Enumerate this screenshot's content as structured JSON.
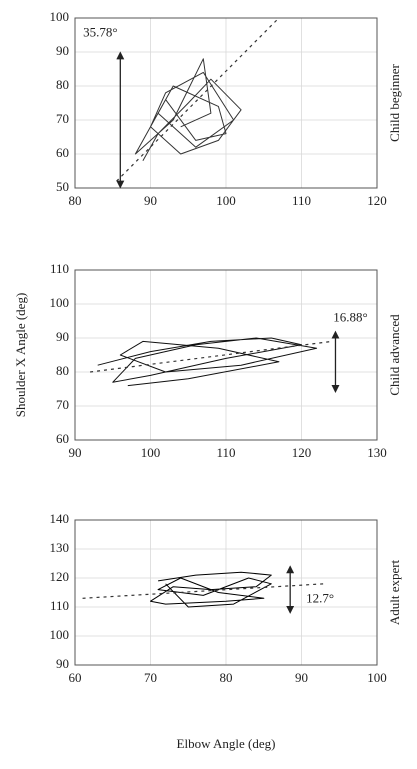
{
  "chart_data": [
    {
      "type": "line",
      "title": "Child beginner",
      "x": [
        89,
        91,
        95,
        98,
        102,
        99,
        94,
        90,
        92,
        97,
        101,
        96,
        91,
        93,
        99,
        100,
        96,
        92,
        88,
        93,
        97,
        98,
        94
      ],
      "y": [
        58,
        66,
        75,
        82,
        73,
        64,
        60,
        68,
        78,
        84,
        70,
        62,
        72,
        80,
        74,
        66,
        64,
        76,
        60,
        70,
        88,
        72,
        68
      ],
      "color": "#333333",
      "fit": {
        "x": [
          85.5,
          107
        ],
        "y": [
          52,
          100
        ]
      },
      "annotation": {
        "text": "35.78°",
        "arrow_x": 86,
        "arrow_y": [
          51,
          89
        ]
      },
      "xlim": [
        80,
        120
      ],
      "ylim": [
        50,
        100
      ],
      "xticks": [
        80,
        90,
        100,
        110,
        120
      ],
      "yticks": [
        50,
        60,
        70,
        80,
        90,
        100
      ],
      "grid": true
    },
    {
      "type": "line",
      "title": "Child advanced",
      "ylabel": "Shoulder X Angle (deg)",
      "x": [
        93,
        100,
        108,
        116,
        120,
        110,
        100,
        95,
        98,
        106,
        114,
        122,
        112,
        102,
        96,
        99,
        109,
        117,
        105,
        97
      ],
      "y": [
        82,
        86,
        89,
        90,
        88,
        84,
        79,
        77,
        84,
        88,
        90,
        87,
        82,
        80,
        85,
        89,
        87,
        83,
        78,
        76
      ],
      "color": "#111111",
      "fit": {
        "x": [
          92,
          124
        ],
        "y": [
          80,
          89
        ]
      },
      "annotation": {
        "text": "16.88°",
        "arrow_x": 124.5,
        "arrow_y": [
          75,
          91
        ]
      },
      "xlim": [
        90,
        130
      ],
      "ylim": [
        60,
        110
      ],
      "xticks": [
        90,
        100,
        110,
        120,
        130
      ],
      "yticks": [
        60,
        70,
        80,
        90,
        100,
        110
      ],
      "grid": true
    },
    {
      "type": "line",
      "title": "Adult expert",
      "xlabel": "Elbow Angle (deg)",
      "x": [
        71,
        76,
        82,
        86,
        84,
        78,
        73,
        70,
        72,
        80,
        85,
        79,
        74,
        71,
        77,
        83,
        86,
        81,
        75,
        72
      ],
      "y": [
        119,
        121,
        122,
        121,
        117,
        116,
        117,
        112,
        111,
        112,
        113,
        115,
        120,
        116,
        114,
        120,
        118,
        111,
        110,
        118
      ],
      "color": "#000000",
      "fit": {
        "x": [
          61,
          93
        ],
        "y": [
          113,
          118
        ]
      },
      "annotation": {
        "text": "12.7°",
        "arrow_x": 88.5,
        "arrow_y": [
          109,
          123
        ]
      },
      "xlim": [
        60,
        100
      ],
      "ylim": [
        90,
        140
      ],
      "xticks": [
        60,
        70,
        80,
        90,
        100
      ],
      "yticks": [
        90,
        100,
        110,
        120,
        130,
        140
      ],
      "grid": true
    }
  ]
}
